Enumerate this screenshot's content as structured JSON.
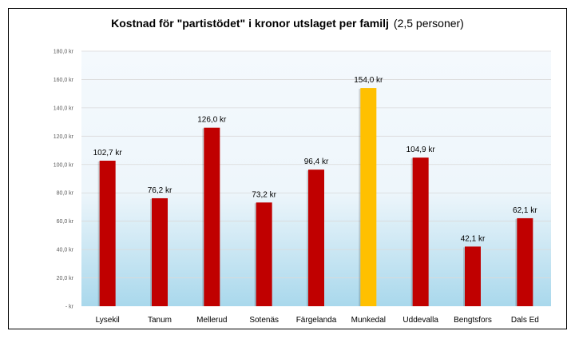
{
  "chart_data": {
    "type": "bar",
    "title": "Kostnad för \"partistödet\" i kronor utslaget per familj",
    "subtitle": "(2,5 personer)",
    "xlabel": "",
    "ylabel": "",
    "ylim": [
      0,
      180
    ],
    "yticks": [
      0,
      20,
      40,
      60,
      80,
      100,
      120,
      140,
      160,
      180
    ],
    "ytick_labels": [
      "-  kr",
      "20,0 kr",
      "40,0 kr",
      "60,0 kr",
      "80,0 kr",
      "100,0 kr",
      "120,0 kr",
      "140,0 kr",
      "160,0 kr",
      "180,0 kr"
    ],
    "grid": true,
    "categories": [
      "Lysekil",
      "Tanum",
      "Mellerud",
      "Sotenäs",
      "Färgelanda",
      "Munkedal",
      "Uddevalla",
      "Bengtsfors",
      "Dals Ed"
    ],
    "values": [
      102.7,
      76.2,
      126.0,
      73.2,
      96.4,
      154.0,
      104.9,
      42.1,
      62.1
    ],
    "data_labels": [
      "102,7 kr",
      "76,2 kr",
      "126,0 kr",
      "73,2 kr",
      "96,4 kr",
      "154,0 kr",
      "104,9 kr",
      "42,1 kr",
      "62,1 kr"
    ],
    "highlight_index": 5,
    "colors": {
      "bar": "#c00000",
      "highlight": "#ffc000",
      "grid": "#d9d9d9"
    }
  }
}
